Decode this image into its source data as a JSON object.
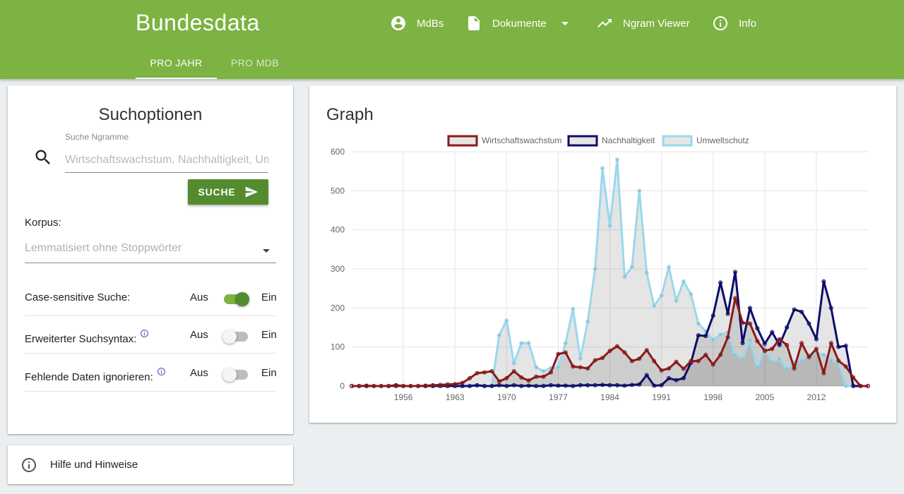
{
  "header": {
    "brand": "Bundesdata",
    "nav": [
      {
        "label": "MdBs",
        "icon": "account-circle-icon"
      },
      {
        "label": "Dokumente",
        "icon": "document-icon",
        "dropdown": true
      },
      {
        "label": "Ngram Viewer",
        "icon": "trending-up-icon"
      },
      {
        "label": "Info",
        "icon": "info-icon"
      }
    ],
    "tabs": [
      {
        "label": "PRO JAHR",
        "active": true
      },
      {
        "label": "PRO MDB",
        "active": false
      }
    ],
    "color": "#7cb342"
  },
  "search_panel": {
    "title": "Suchoptionen",
    "ngram_label": "Suche Ngramme",
    "ngram_placeholder": "Wirtschaftswachstum, Nachhaltigkeit, Umweltschutz",
    "search_button": "SUCHE",
    "corpus_label": "Korpus:",
    "corpus_placeholder": "Lemmatisiert ohne Stoppwörter",
    "options": [
      {
        "label": "Case-sensitive Suche:",
        "off": "Aus",
        "on": "Ein",
        "checked": true,
        "info": false
      },
      {
        "label": "Erweiterter Suchsyntax:",
        "off": "Aus",
        "on": "Ein",
        "checked": false,
        "info": true
      },
      {
        "label": "Fehlende Daten ignorieren:",
        "off": "Aus",
        "on": "Ein",
        "checked": false,
        "info": true
      }
    ]
  },
  "help_panel": {
    "label": "Hilfe und Hinweise"
  },
  "graph_panel": {
    "title": "Graph"
  },
  "chart_data": {
    "type": "area",
    "title": "",
    "xlabel": "",
    "ylabel": "",
    "x_start": 1949,
    "x_end": 2019,
    "x_tick_labels": [
      "1956",
      "1963",
      "1970",
      "1977",
      "1984",
      "1991",
      "1998",
      "2005",
      "2012"
    ],
    "y_tick_labels": [
      "0",
      "100",
      "200",
      "300",
      "400",
      "500",
      "600"
    ],
    "ylim": [
      0,
      600
    ],
    "grid": true,
    "legend_position": "top",
    "x": [
      1949,
      1950,
      1951,
      1952,
      1953,
      1954,
      1955,
      1956,
      1957,
      1958,
      1959,
      1960,
      1961,
      1962,
      1963,
      1964,
      1965,
      1966,
      1967,
      1968,
      1969,
      1970,
      1971,
      1972,
      1973,
      1974,
      1975,
      1976,
      1977,
      1978,
      1979,
      1980,
      1981,
      1982,
      1983,
      1984,
      1985,
      1986,
      1987,
      1988,
      1989,
      1990,
      1991,
      1992,
      1993,
      1994,
      1995,
      1996,
      1997,
      1998,
      1999,
      2000,
      2001,
      2002,
      2003,
      2004,
      2005,
      2006,
      2007,
      2008,
      2009,
      2010,
      2011,
      2012,
      2013,
      2014,
      2015,
      2016,
      2017,
      2018,
      2019
    ],
    "series": [
      {
        "name": "Wirtschaftswachstum",
        "color": "#8b1a1a",
        "values": [
          0,
          0,
          1,
          0,
          0,
          0,
          0,
          0,
          0,
          0,
          1,
          2,
          3,
          4,
          5,
          8,
          20,
          33,
          35,
          38,
          12,
          20,
          38,
          22,
          14,
          24,
          24,
          35,
          82,
          86,
          50,
          48,
          45,
          66,
          72,
          90,
          102,
          86,
          64,
          70,
          92,
          64,
          40,
          45,
          62,
          44,
          64,
          64,
          80,
          55,
          80,
          125,
          225,
          162,
          160,
          115,
          90,
          95,
          120,
          105,
          45,
          110,
          74,
          95,
          33,
          110,
          65,
          50,
          22,
          0,
          0
        ]
      },
      {
        "name": "Nachhaltigkeit",
        "color": "#0d0d6b",
        "values": [
          0,
          0,
          0,
          0,
          0,
          0,
          2,
          0,
          0,
          0,
          0,
          0,
          0,
          0,
          0,
          0,
          0,
          2,
          0,
          0,
          2,
          0,
          2,
          0,
          1,
          0,
          0,
          2,
          1,
          1,
          0,
          2,
          2,
          2,
          3,
          2,
          2,
          1,
          3,
          4,
          28,
          1,
          2,
          20,
          15,
          20,
          60,
          130,
          128,
          180,
          265,
          185,
          292,
          110,
          200,
          148,
          108,
          138,
          105,
          150,
          196,
          190,
          160,
          120,
          268,
          200,
          100,
          103,
          0,
          0,
          0
        ]
      },
      {
        "name": "Umweltschutz",
        "color": "#9ad8ec",
        "values": [
          0,
          0,
          0,
          0,
          0,
          0,
          0,
          0,
          0,
          0,
          0,
          0,
          0,
          0,
          0,
          0,
          0,
          0,
          0,
          0,
          130,
          168,
          58,
          110,
          110,
          48,
          38,
          46,
          48,
          110,
          198,
          70,
          165,
          300,
          558,
          410,
          580,
          280,
          305,
          500,
          290,
          205,
          232,
          305,
          218,
          268,
          235,
          160,
          140,
          118,
          132,
          138,
          80,
          70,
          118,
          48,
          98,
          62,
          70,
          44,
          60,
          65,
          80,
          85,
          80,
          65,
          60,
          0,
          0,
          0,
          0
        ]
      }
    ]
  }
}
